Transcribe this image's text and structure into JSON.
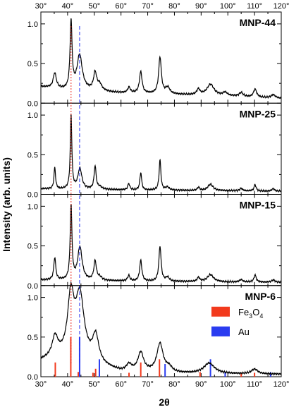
{
  "chart_data": {
    "type": "line",
    "xlabel": "2θ",
    "ylabel": "Intensity  (arb. units)",
    "xlim": [
      30,
      120
    ],
    "x_ticks": [
      "30°",
      "40°",
      "50°",
      "60°",
      "70°",
      "80°",
      "90°",
      "100°",
      "110°",
      "120°"
    ],
    "x_tick_values": [
      30,
      40,
      50,
      60,
      70,
      80,
      90,
      100,
      110,
      120
    ],
    "y_ticks": [
      "0.0",
      "0.5",
      "1.0"
    ],
    "y_tick_values": [
      0,
      0.5,
      1.0
    ],
    "reference_lines": [
      {
        "x": 41.3,
        "color": "#e8261c",
        "style": "dotted"
      },
      {
        "x": 44.5,
        "color": "#2430f2",
        "style": "dashed"
      }
    ],
    "panels": [
      {
        "label": "MNP-44",
        "ylim": [
          0,
          1.15
        ],
        "baseline": [
          [
            30,
            0.21
          ],
          [
            40,
            0.16
          ],
          [
            46,
            0.16
          ],
          [
            60,
            0.13
          ],
          [
            80,
            0.11
          ],
          [
            100,
            0.09
          ],
          [
            120,
            0.06
          ]
        ],
        "peaks": [
          {
            "x": 35.2,
            "h": 0.19,
            "w": 0.7
          },
          {
            "x": 41.3,
            "h": 0.85,
            "w": 0.45
          },
          {
            "x": 44.5,
            "h": 0.44,
            "w": 1.2
          },
          {
            "x": 50.3,
            "h": 0.22,
            "w": 0.7
          },
          {
            "x": 52.0,
            "h": 0.08,
            "w": 1.0
          },
          {
            "x": 63.0,
            "h": 0.07,
            "w": 0.6
          },
          {
            "x": 67.4,
            "h": 0.27,
            "w": 0.6
          },
          {
            "x": 74.6,
            "h": 0.46,
            "w": 0.6
          },
          {
            "x": 77.5,
            "h": 0.08,
            "w": 1.0
          },
          {
            "x": 89.0,
            "h": 0.07,
            "w": 0.7
          },
          {
            "x": 93.5,
            "h": 0.14,
            "w": 1.6
          },
          {
            "x": 99.0,
            "h": 0.04,
            "w": 1.0
          },
          {
            "x": 105.0,
            "h": 0.05,
            "w": 0.8
          },
          {
            "x": 110.2,
            "h": 0.1,
            "w": 0.7
          },
          {
            "x": 117.0,
            "h": 0.04,
            "w": 1.0
          }
        ]
      },
      {
        "label": "MNP-25",
        "ylim": [
          0,
          1.15
        ],
        "baseline": [
          [
            30,
            0.07
          ],
          [
            50,
            0.06
          ],
          [
            80,
            0.05
          ],
          [
            120,
            0.04
          ]
        ],
        "peaks": [
          {
            "x": 35.2,
            "h": 0.27,
            "w": 0.35
          },
          {
            "x": 41.3,
            "h": 0.93,
            "w": 0.35
          },
          {
            "x": 44.6,
            "h": 0.26,
            "w": 0.9
          },
          {
            "x": 50.3,
            "h": 0.29,
            "w": 0.45
          },
          {
            "x": 52.0,
            "h": 0.03,
            "w": 1.0
          },
          {
            "x": 62.9,
            "h": 0.08,
            "w": 0.45
          },
          {
            "x": 67.4,
            "h": 0.22,
            "w": 0.4
          },
          {
            "x": 74.6,
            "h": 0.38,
            "w": 0.4
          },
          {
            "x": 77.4,
            "h": 0.04,
            "w": 0.8
          },
          {
            "x": 89.0,
            "h": 0.04,
            "w": 0.5
          },
          {
            "x": 93.5,
            "h": 0.08,
            "w": 1.2
          },
          {
            "x": 105.0,
            "h": 0.03,
            "w": 0.6
          },
          {
            "x": 110.2,
            "h": 0.08,
            "w": 0.45
          },
          {
            "x": 117.0,
            "h": 0.03,
            "w": 0.6
          }
        ]
      },
      {
        "label": "MNP-15",
        "ylim": [
          0,
          1.15
        ],
        "baseline": [
          [
            30,
            0.07
          ],
          [
            50,
            0.06
          ],
          [
            80,
            0.05
          ],
          [
            120,
            0.04
          ]
        ],
        "peaks": [
          {
            "x": 35.2,
            "h": 0.28,
            "w": 0.45
          },
          {
            "x": 41.3,
            "h": 0.93,
            "w": 0.4
          },
          {
            "x": 44.6,
            "h": 0.42,
            "w": 1.0
          },
          {
            "x": 50.3,
            "h": 0.24,
            "w": 0.55
          },
          {
            "x": 52.0,
            "h": 0.04,
            "w": 1.0
          },
          {
            "x": 62.9,
            "h": 0.07,
            "w": 0.5
          },
          {
            "x": 67.4,
            "h": 0.26,
            "w": 0.5
          },
          {
            "x": 74.6,
            "h": 0.44,
            "w": 0.5
          },
          {
            "x": 77.4,
            "h": 0.05,
            "w": 0.8
          },
          {
            "x": 89.0,
            "h": 0.05,
            "w": 0.6
          },
          {
            "x": 93.5,
            "h": 0.09,
            "w": 1.4
          },
          {
            "x": 105.0,
            "h": 0.03,
            "w": 0.7
          },
          {
            "x": 110.2,
            "h": 0.09,
            "w": 0.5
          },
          {
            "x": 117.0,
            "h": 0.03,
            "w": 0.7
          }
        ]
      },
      {
        "label": "MNP-6",
        "ylim": [
          0,
          1.15
        ],
        "baseline": [
          [
            30,
            0.2
          ],
          [
            38,
            0.24
          ],
          [
            42,
            0.25
          ],
          [
            50,
            0.15
          ],
          [
            60,
            0.06
          ],
          [
            80,
            0.04
          ],
          [
            120,
            0.03
          ]
        ],
        "peaks": [
          {
            "x": 35.3,
            "h": 0.25,
            "w": 1.3
          },
          {
            "x": 41.2,
            "h": 0.72,
            "w": 1.4
          },
          {
            "x": 44.6,
            "h": 0.78,
            "w": 1.9
          },
          {
            "x": 50.5,
            "h": 0.34,
            "w": 1.4
          },
          {
            "x": 63.0,
            "h": 0.08,
            "w": 1.2
          },
          {
            "x": 67.4,
            "h": 0.24,
            "w": 1.3
          },
          {
            "x": 74.6,
            "h": 0.36,
            "w": 1.4
          },
          {
            "x": 78.0,
            "h": 0.06,
            "w": 1.4
          },
          {
            "x": 93.0,
            "h": 0.13,
            "w": 2.4
          },
          {
            "x": 110.0,
            "h": 0.06,
            "w": 1.5
          }
        ],
        "sticks": {
          "fe3o4": [
            [
              35.4,
              0.18
            ],
            [
              41.2,
              0.5
            ],
            [
              44.0,
              0.06
            ],
            [
              49.5,
              0.05
            ],
            [
              50.5,
              0.1
            ],
            [
              63.0,
              0.05
            ],
            [
              67.4,
              0.18
            ],
            [
              74.4,
              0.22
            ],
            [
              89.6,
              0.06
            ],
            [
              105.0,
              0.04
            ],
            [
              110.0,
              0.05
            ]
          ],
          "au": [
            [
              44.5,
              0.5
            ],
            [
              51.9,
              0.22
            ],
            [
              76.5,
              0.16
            ],
            [
              93.5,
              0.22
            ],
            [
              99.0,
              0.06
            ],
            [
              116.0,
              0.06
            ]
          ]
        },
        "legend": [
          {
            "name": "Fe3O4",
            "main": "Fe",
            "sub1": "3",
            "mid": "O",
            "sub2": "4",
            "color": "#f23a1d"
          },
          {
            "name": "Au",
            "main": "Au",
            "color": "#2a3cf0"
          }
        ]
      }
    ]
  }
}
